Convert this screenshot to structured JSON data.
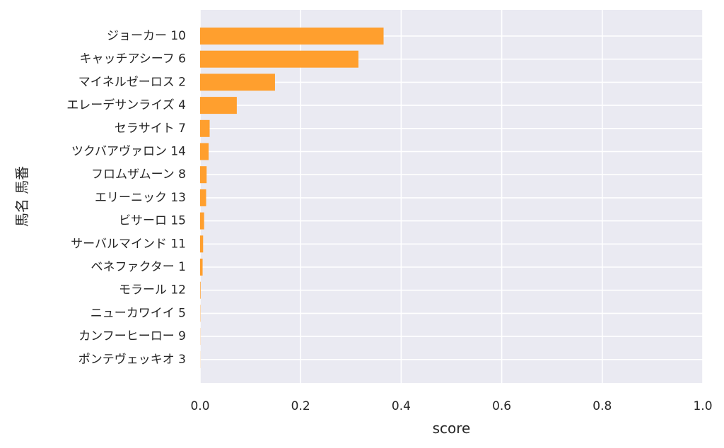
{
  "chart_data": {
    "type": "bar",
    "orientation": "horizontal",
    "xlabel": "score",
    "ylabel": "馬名 馬番",
    "xlim": [
      0,
      1
    ],
    "xticks": [
      "0.0",
      "0.2",
      "0.4",
      "0.6",
      "0.8",
      "1.0"
    ],
    "xtick_values": [
      0,
      0.2,
      0.4,
      0.6,
      0.8,
      1.0
    ],
    "grid": true,
    "categories": [
      "ジョーカー 10",
      "キャッチアシーフ 6",
      "マイネルゼーロス 2",
      "エレーデサンライズ 4",
      "セラサイト 7",
      "ツクバアヴァロン 14",
      "フロムザムーン 8",
      "エリーニック 13",
      "ビサーロ 15",
      "サーバルマインド 11",
      "ベネファクター 1",
      "モラール 12",
      "ニューカワイイ 5",
      "カンフーヒーロー 9",
      "ポンテヴェッキオ 3"
    ],
    "values": [
      0.365,
      0.315,
      0.149,
      0.073,
      0.019,
      0.017,
      0.013,
      0.012,
      0.008,
      0.006,
      0.005,
      0.001,
      0.0005,
      0.0003,
      0.0002
    ],
    "colors": {
      "bar": "#ff9f2e",
      "plot_background": "#eaeaf2",
      "grid": "#ffffff",
      "text": "#262626"
    }
  }
}
